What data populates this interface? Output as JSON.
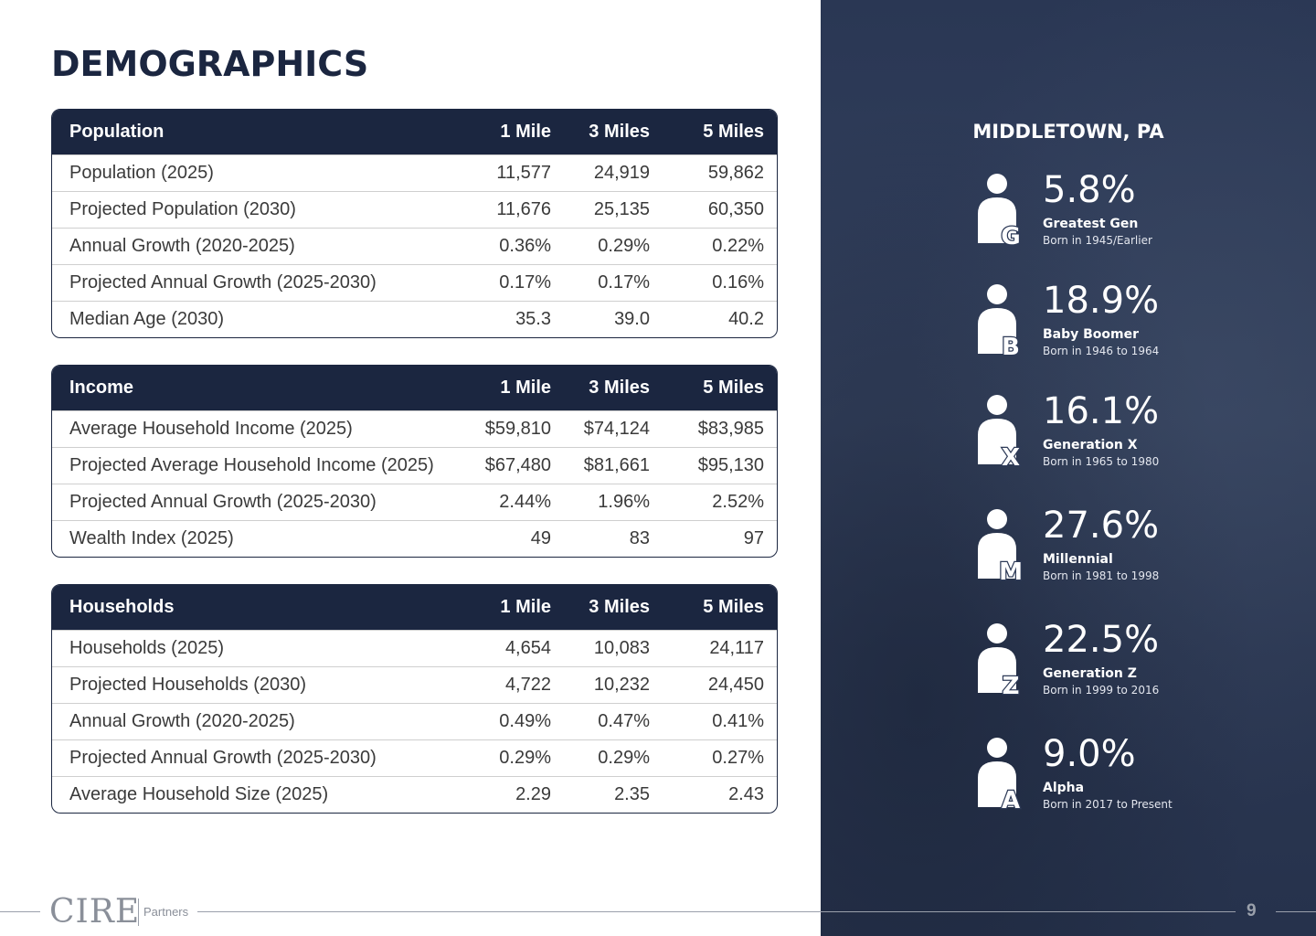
{
  "title": "DEMOGRAPHICS",
  "tables": {
    "population": {
      "header": [
        "Population",
        "1 Mile",
        "3 Miles",
        "5 Miles"
      ],
      "rows": [
        [
          "Population (2025)",
          "11,577",
          "24,919",
          "59,862"
        ],
        [
          "Projected Population (2030)",
          "11,676",
          "25,135",
          "60,350"
        ],
        [
          "Annual Growth (2020-2025)",
          "0.36%",
          "0.29%",
          "0.22%"
        ],
        [
          "Projected Annual Growth (2025-2030)",
          "0.17%",
          "0.17%",
          "0.16%"
        ],
        [
          "Median Age (2030)",
          "35.3",
          "39.0",
          "40.2"
        ]
      ]
    },
    "income": {
      "header": [
        "Income",
        "1 Mile",
        "3 Miles",
        "5 Miles"
      ],
      "rows": [
        [
          "Average Household Income (2025)",
          "$59,810",
          "$74,124",
          "$83,985"
        ],
        [
          "Projected Average Household Income (2025)",
          "$67,480",
          "$81,661",
          "$95,130"
        ],
        [
          "Projected Annual Growth (2025-2030)",
          "2.44%",
          "1.96%",
          "2.52%"
        ],
        [
          "Wealth Index (2025)",
          "49",
          "83",
          "97"
        ]
      ]
    },
    "households": {
      "header": [
        "Households",
        "1 Mile",
        "3 Miles",
        "5 Miles"
      ],
      "rows": [
        [
          "Households (2025)",
          "4,654",
          "10,083",
          "24,117"
        ],
        [
          "Projected Households (2030)",
          "4,722",
          "10,232",
          "24,450"
        ],
        [
          "Annual Growth (2020-2025)",
          "0.49%",
          "0.47%",
          "0.41%"
        ],
        [
          "Projected Annual Growth (2025-2030)",
          "0.29%",
          "0.29%",
          "0.27%"
        ],
        [
          "Average Household Size (2025)",
          "2.29",
          "2.35",
          "2.43"
        ]
      ]
    }
  },
  "sidebar": {
    "location": "MIDDLETOWN, PA",
    "generations": [
      {
        "letter": "G",
        "pct": "5.8%",
        "name": "Greatest Gen",
        "born": "Born in 1945/Earlier"
      },
      {
        "letter": "B",
        "pct": "18.9%",
        "name": "Baby Boomer",
        "born": "Born in 1946 to 1964"
      },
      {
        "letter": "X",
        "pct": "16.1%",
        "name": "Generation X",
        "born": "Born in 1965 to 1980"
      },
      {
        "letter": "M",
        "pct": "27.6%",
        "name": "Millennial",
        "born": "Born in 1981 to 1998"
      },
      {
        "letter": "Z",
        "pct": "22.5%",
        "name": "Generation Z",
        "born": "Born in 1999 to 2016"
      },
      {
        "letter": "A",
        "pct": "9.0%",
        "name": "Alpha",
        "born": "Born in 2017 to Present"
      }
    ],
    "panel_color": "#2e3b58"
  },
  "footer": {
    "logo": "CIRE",
    "partners": "Partners",
    "page_number": "9"
  },
  "colors": {
    "navy": "#1b2640",
    "footer_gray": "#9aa0ab"
  }
}
